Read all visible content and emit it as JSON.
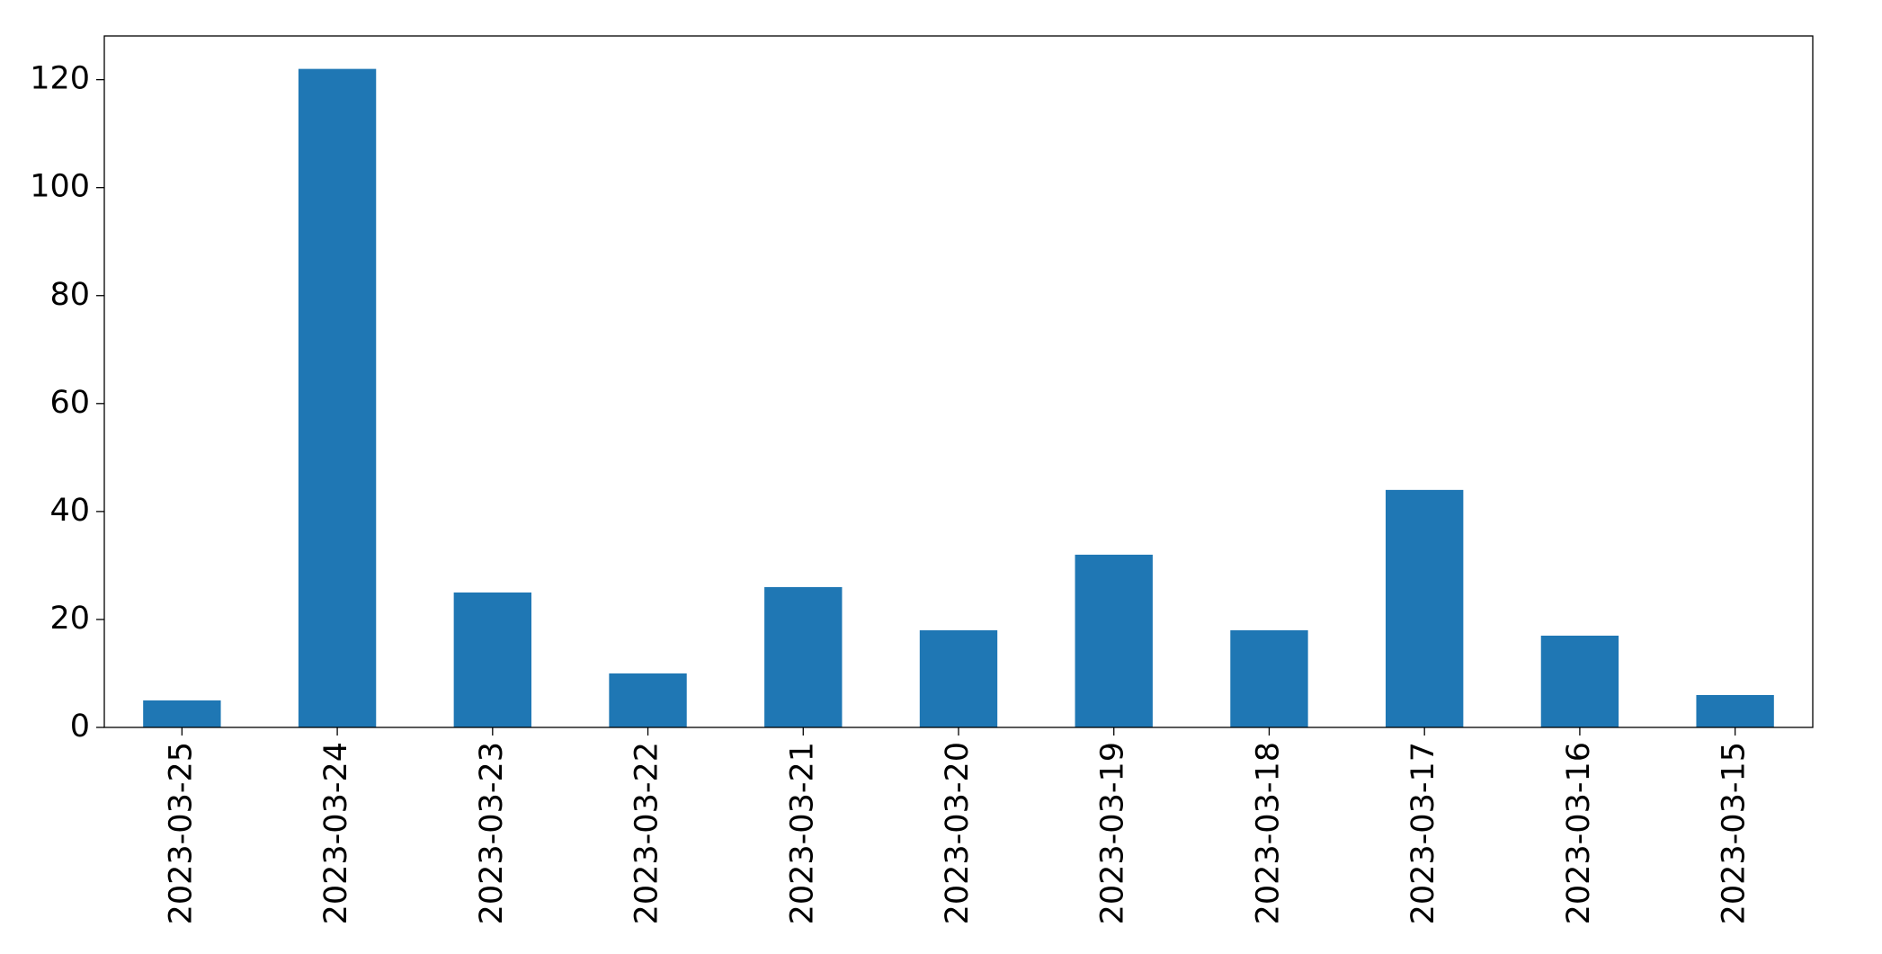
{
  "chart_data": {
    "type": "bar",
    "categories": [
      "2023-03-25",
      "2023-03-24",
      "2023-03-23",
      "2023-03-22",
      "2023-03-21",
      "2023-03-20",
      "2023-03-19",
      "2023-03-18",
      "2023-03-17",
      "2023-03-16",
      "2023-03-15"
    ],
    "values": [
      5,
      122,
      25,
      10,
      26,
      18,
      32,
      18,
      44,
      17,
      6
    ],
    "color": "#1f77b4",
    "ylim": [
      0,
      128.1
    ],
    "yticks": [
      0,
      20,
      40,
      60,
      80,
      100,
      120
    ],
    "grid": false
  }
}
